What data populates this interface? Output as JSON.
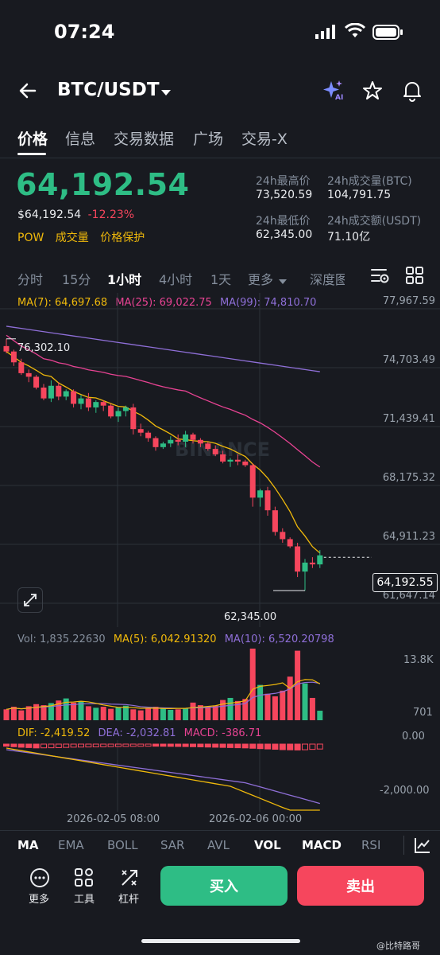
{
  "status": {
    "time": "07:24"
  },
  "header": {
    "pair": "BTC/USDT"
  },
  "tabs": [
    "价格",
    "信息",
    "交易数据",
    "广场",
    "交易-X"
  ],
  "price": {
    "last": "64,192.54",
    "fiat": "$64,192.54",
    "change": "-12.23%",
    "tags": [
      "POW",
      "成交量",
      "价格保护"
    ]
  },
  "stats": {
    "high_label": "24h最高价",
    "high": "73,520.59",
    "vol_btc_label": "24h成交量(BTC)",
    "vol_btc": "104,791.75",
    "low_label": "24h最低价",
    "low": "62,345.00",
    "vol_usdt_label": "24h成交额(USDT)",
    "vol_usdt": "71.10亿"
  },
  "intervals": [
    "分时",
    "15分",
    "1小时",
    "4小时",
    "1天",
    "更多",
    "深度图"
  ],
  "ma_legend": {
    "ma7": "MA(7): 64,697.68",
    "ma25": "MA(25): 69,022.75",
    "ma99": "MA(99): 74,810.70"
  },
  "price_axis": [
    "77,967.59",
    "74,703.49",
    "71,439.41",
    "68,175.32",
    "64,911.23",
    "61,647.14"
  ],
  "current_price_tag": "64,192.55",
  "high_marker": "76,302.10",
  "low_marker": "62,345.00",
  "watermark": "BINANCE",
  "vol_legend": {
    "vol": "Vol: 1,835.22630",
    "ma5": "MA(5): 6,042.91320",
    "ma10": "MA(10): 6,520.20798"
  },
  "vol_axis": [
    "13.8K",
    "701"
  ],
  "macd_legend": {
    "dif": "DIF: -2,419.52",
    "dea": "DEA: -2,032.81",
    "macd": "MACD: -386.71"
  },
  "macd_axis": [
    "0.00",
    "-2,000.00"
  ],
  "time_axis": [
    "2026-02-05 08:00",
    "2026-02-06 00:00"
  ],
  "indicators": [
    "MA",
    "EMA",
    "BOLL",
    "SAR",
    "AVL",
    "VOL",
    "MACD",
    "RSI"
  ],
  "toolbar": {
    "more": "更多",
    "tools": "工具",
    "leverage": "杠杆"
  },
  "actions": {
    "buy": "买入",
    "sell": "卖出"
  },
  "footer_watermark": "@比特路哥",
  "colors": {
    "up": "#2ebd85",
    "down": "#f6465d",
    "ma7": "#f0b90b",
    "ma25": "#e84393",
    "ma99": "#8f6fd8"
  },
  "chart_data": {
    "type": "candlestick",
    "candles": [
      [
        75900,
        76302,
        75500,
        75600
      ],
      [
        75600,
        75700,
        74800,
        75000
      ],
      [
        75000,
        75200,
        74300,
        74400
      ],
      [
        74400,
        74600,
        73900,
        74200
      ],
      [
        74200,
        74300,
        73500,
        73600
      ],
      [
        73600,
        73800,
        72900,
        73000
      ],
      [
        73000,
        74000,
        72800,
        73700
      ],
      [
        73700,
        73900,
        72900,
        73100
      ],
      [
        73100,
        73500,
        72900,
        73400
      ],
      [
        73400,
        73500,
        72500,
        72700
      ],
      [
        72700,
        73200,
        72400,
        73000
      ],
      [
        73000,
        73300,
        72300,
        72500
      ],
      [
        72500,
        72900,
        72200,
        72800
      ],
      [
        72800,
        72900,
        72300,
        72600
      ],
      [
        72600,
        72700,
        71900,
        72000
      ],
      [
        72000,
        72500,
        71700,
        72300
      ],
      [
        72300,
        72600,
        72000,
        72500
      ],
      [
        72500,
        72700,
        71000,
        71300
      ],
      [
        71300,
        71600,
        70900,
        71100
      ],
      [
        71100,
        71200,
        70600,
        70800
      ],
      [
        70800,
        70900,
        70100,
        70300
      ],
      [
        70300,
        70600,
        70200,
        70500
      ],
      [
        70500,
        70900,
        70300,
        70700
      ],
      [
        70700,
        71000,
        70400,
        70600
      ],
      [
        70600,
        71200,
        70300,
        71000
      ],
      [
        71000,
        71100,
        70500,
        70700
      ],
      [
        70700,
        70800,
        70300,
        70500
      ],
      [
        70500,
        70600,
        70100,
        70200
      ],
      [
        70200,
        70400,
        69800,
        69900
      ],
      [
        69900,
        70100,
        69400,
        69500
      ],
      [
        69500,
        69700,
        69200,
        69600
      ],
      [
        69600,
        69900,
        69300,
        69500
      ],
      [
        69500,
        69600,
        69200,
        69300
      ],
      [
        69300,
        69400,
        67000,
        67500
      ],
      [
        67500,
        68000,
        67000,
        67900
      ],
      [
        67900,
        68100,
        66500,
        66800
      ],
      [
        66800,
        67000,
        65400,
        65600
      ],
      [
        65600,
        65800,
        65000,
        65200
      ],
      [
        65200,
        65300,
        64700,
        64800
      ],
      [
        64800,
        65000,
        63100,
        63400
      ],
      [
        63400,
        64100,
        62345,
        63900
      ],
      [
        63900,
        64200,
        63600,
        63800
      ],
      [
        63800,
        64600,
        63600,
        64300
      ]
    ],
    "volume": [
      2100,
      2600,
      1900,
      2700,
      3100,
      2900,
      3300,
      3800,
      4200,
      3400,
      3600,
      2700,
      2400,
      2600,
      2200,
      2500,
      2800,
      2100,
      1900,
      2300,
      2600,
      2400,
      2000,
      2100,
      2300,
      3400,
      2900,
      2600,
      2800,
      3900,
      4300,
      3700,
      4100,
      13800,
      6800,
      5100,
      4600,
      5700,
      8400,
      13400,
      7100,
      4300,
      1835
    ],
    "macd": [
      -60,
      -120,
      -180,
      -220,
      -260,
      -250,
      -240,
      -230,
      -200,
      -170,
      -160,
      -150,
      -140,
      -130,
      -110,
      -100,
      -90,
      -80,
      -70,
      -60,
      -60,
      -70,
      -80,
      -90,
      -100,
      -120,
      -140,
      -160,
      -180,
      -200,
      -220,
      -240,
      -260,
      -300,
      -340,
      -380,
      -420,
      -460,
      -480,
      -500,
      -470,
      -430,
      -387
    ]
  }
}
